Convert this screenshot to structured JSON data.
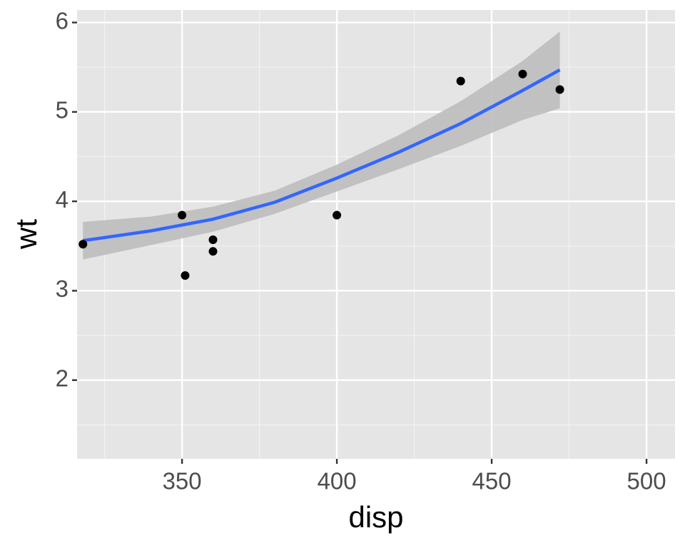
{
  "chart_data": {
    "type": "scatter",
    "xlabel": "disp",
    "ylabel": "wt",
    "xlim": [
      316.1,
      509.2
    ],
    "ylim": [
      1.12,
      6.14
    ],
    "xticks": [
      350,
      400,
      450,
      500
    ],
    "yticks": [
      2,
      3,
      4,
      5,
      6
    ],
    "xminor": [
      325,
      375,
      425,
      475
    ],
    "yminor": [
      1.5,
      2.5,
      3.5,
      4.5,
      5.5
    ],
    "grid": true,
    "points": {
      "color": "#000000",
      "x": [
        318,
        350,
        351,
        360,
        360,
        400,
        440,
        460,
        472
      ],
      "values": [
        3.52,
        3.845,
        3.17,
        3.57,
        3.44,
        3.845,
        5.345,
        5.424,
        5.25
      ]
    },
    "smooth": {
      "color": "#3366ff",
      "band_color": "#bdbdbd",
      "x": [
        318,
        340,
        360,
        380,
        400,
        420,
        440,
        460,
        472
      ],
      "values": [
        3.56,
        3.67,
        3.8,
        3.99,
        4.26,
        4.55,
        4.87,
        5.24,
        5.47
      ],
      "lower": [
        3.35,
        3.51,
        3.66,
        3.86,
        4.11,
        4.36,
        4.62,
        4.91,
        5.04
      ],
      "upper": [
        3.77,
        3.83,
        3.94,
        4.12,
        4.41,
        4.74,
        5.12,
        5.57,
        5.9
      ]
    }
  }
}
